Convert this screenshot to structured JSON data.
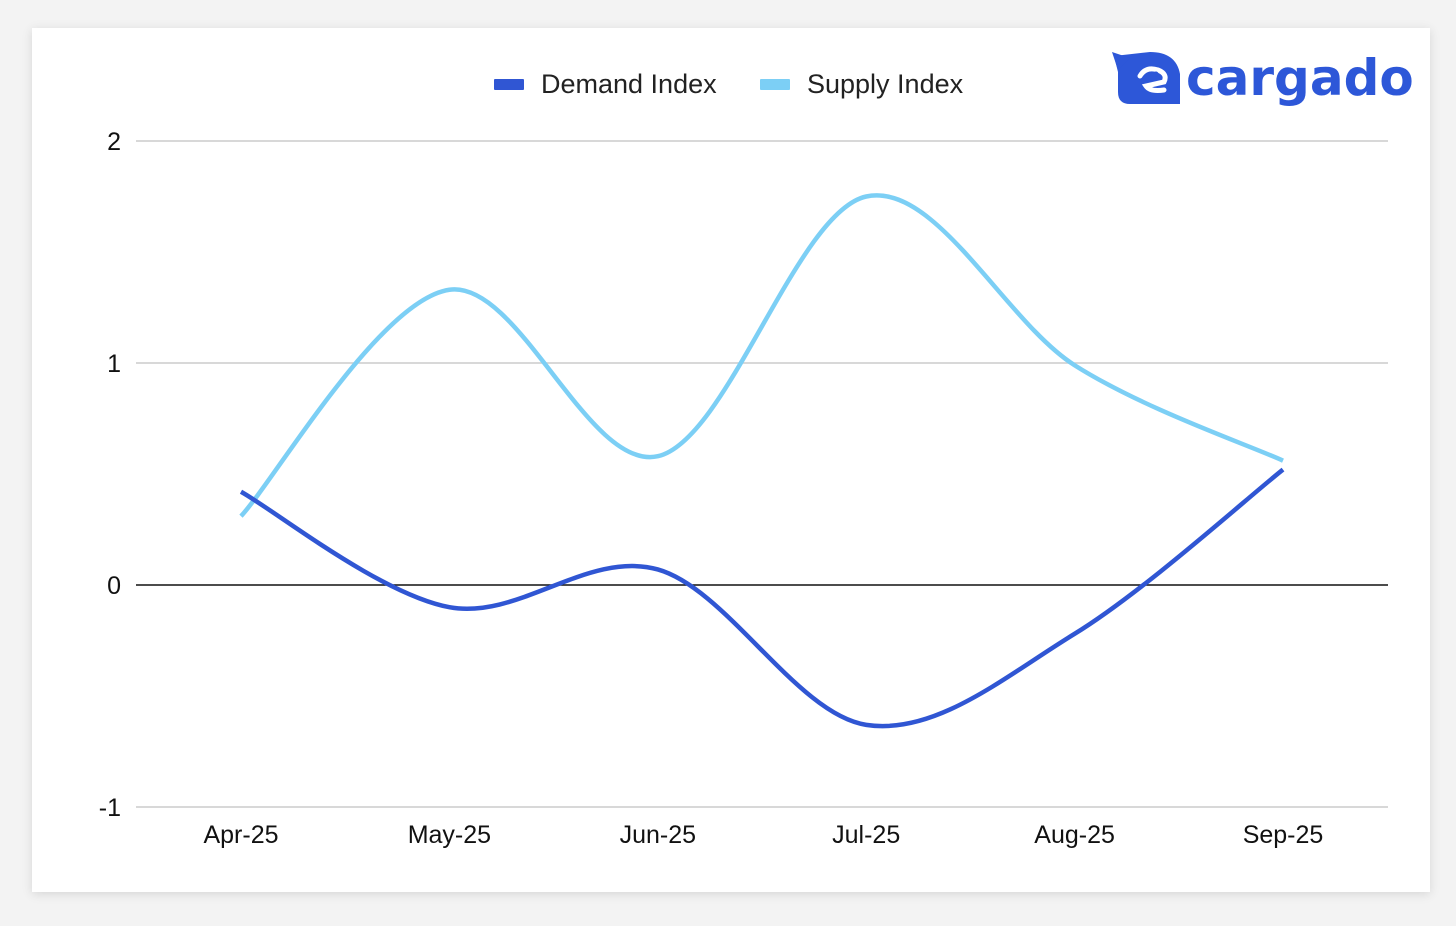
{
  "brand": {
    "name": "cargado",
    "color": "#2d57d8",
    "icon": "cargado-logo-icon"
  },
  "chart_data": {
    "type": "line",
    "categories": [
      "Apr-25",
      "May-25",
      "Jun-25",
      "Jul-25",
      "Aug-25",
      "Sep-25"
    ],
    "series": [
      {
        "name": "Demand Index",
        "color": "#3056d3",
        "values": [
          0.42,
          -0.1,
          0.07,
          -0.63,
          -0.22,
          0.52
        ]
      },
      {
        "name": "Supply Index",
        "color": "#7ccff5",
        "values": [
          0.31,
          1.33,
          0.58,
          1.75,
          0.99,
          0.56
        ]
      }
    ],
    "title": "",
    "xlabel": "",
    "ylabel": "",
    "ylim": [
      -1,
      2
    ],
    "yticks": [
      "-1",
      "0",
      "1",
      "2"
    ],
    "grid": true,
    "legend_position": "top",
    "line_style": "smooth"
  }
}
